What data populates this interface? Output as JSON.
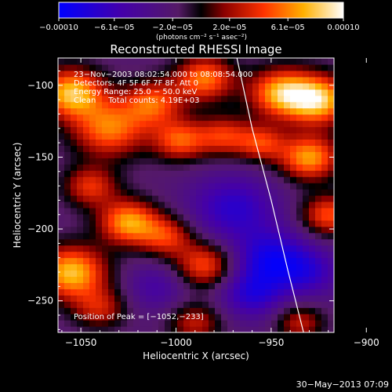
{
  "chart_data": {
    "type": "heatmap",
    "title": "Reconstructed RHESSI Image",
    "xlabel": "Heliocentric X (arcsec)",
    "ylabel": "Heliocentric Y (arcsec)",
    "xlim": [
      -1062,
      -917
    ],
    "ylim": [
      -272,
      -81
    ],
    "x_ticks": [
      -1050,
      -1000,
      -950,
      -900
    ],
    "x_tick_labels": [
      "−1050",
      "−1000",
      "−950",
      "−900"
    ],
    "y_ticks": [
      -100,
      -150,
      -200,
      -250
    ],
    "y_tick_labels": [
      "−100",
      "−150",
      "−200",
      "−250"
    ],
    "colorbar": {
      "min": -0.0001,
      "max": 0.0001,
      "ticks": [
        -0.0001,
        -6.1e-05,
        -2e-05,
        2e-05,
        6.1e-05,
        0.0001
      ],
      "tick_labels": [
        "−0.00010",
        "−6.1e−05",
        "−2.0e−05",
        "2.0e−05",
        "6.1e−05",
        "0.00010"
      ],
      "unit_label": "(photons cm⁻² s⁻¹ asec⁻²)",
      "colormap": "blue-purple-red-yellow-white"
    },
    "annotations": [
      "23−Nov−2003 08:02:54.000 to 08:08:54.000",
      "Detectors: 4F 5F 6F 7F 8F, Att 0",
      "Energy Range: 25.0 − 50.0 keV",
      "Clean     Total counts: 4.19E+03"
    ],
    "peak_label": "Position of Peak = [−1052,−233]",
    "peak": [
      -1052,
      -233
    ],
    "limb_curve": [
      [
        -968,
        -81
      ],
      [
        -960,
        -130
      ],
      [
        -950,
        -180
      ],
      [
        -941,
        -230
      ],
      [
        -933,
        -272
      ]
    ],
    "blobs": [
      {
        "x": -1055,
        "y": -105,
        "a": 0.0001,
        "s": 12
      },
      {
        "x": -1035,
        "y": -130,
        "a": 8e-05,
        "s": 14
      },
      {
        "x": -1012,
        "y": -112,
        "a": 7e-05,
        "s": 11
      },
      {
        "x": -998,
        "y": -138,
        "a": 7e-05,
        "s": 10
      },
      {
        "x": -985,
        "y": -95,
        "a": 8e-05,
        "s": 11
      },
      {
        "x": -975,
        "y": -135,
        "a": 6e-05,
        "s": 10
      },
      {
        "x": -1045,
        "y": -170,
        "a": 6e-05,
        "s": 10
      },
      {
        "x": -1025,
        "y": -195,
        "a": 9e-05,
        "s": 11
      },
      {
        "x": -1055,
        "y": -230,
        "a": 0.0001,
        "s": 13
      },
      {
        "x": -1005,
        "y": -205,
        "a": 6e-05,
        "s": 10
      },
      {
        "x": -985,
        "y": -225,
        "a": 7e-05,
        "s": 11
      },
      {
        "x": -1040,
        "y": -255,
        "a": 5e-05,
        "s": 10
      },
      {
        "x": -990,
        "y": -265,
        "a": 5e-05,
        "s": 10
      },
      {
        "x": -945,
        "y": -105,
        "a": 9e-05,
        "s": 12
      },
      {
        "x": -925,
        "y": -110,
        "a": 0.0001,
        "s": 12
      },
      {
        "x": -930,
        "y": -150,
        "a": 9e-05,
        "s": 11
      },
      {
        "x": -955,
        "y": -140,
        "a": 6e-05,
        "s": 9
      },
      {
        "x": -920,
        "y": -190,
        "a": 7e-05,
        "s": 10
      },
      {
        "x": -935,
        "y": -265,
        "a": 5e-05,
        "s": 9
      },
      {
        "x": -970,
        "y": -185,
        "a": -5e-05,
        "s": 16
      },
      {
        "x": -950,
        "y": -220,
        "a": -6e-05,
        "s": 14
      },
      {
        "x": -930,
        "y": -230,
        "a": -4e-05,
        "s": 12
      },
      {
        "x": -1010,
        "y": -240,
        "a": -3e-05,
        "s": 12
      },
      {
        "x": -960,
        "y": -245,
        "a": -5e-05,
        "s": 12
      }
    ]
  },
  "timestamp": "30−May−2013 07:09"
}
